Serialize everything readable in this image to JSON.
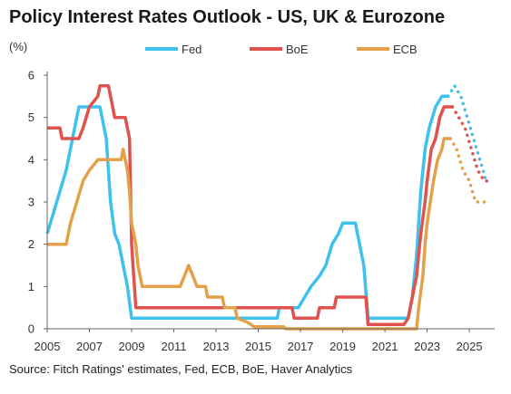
{
  "header": {
    "title": "Policy Interest Rates Outlook - US, UK & Eurozone",
    "unit": "(%)"
  },
  "footer": {
    "source": "Source: Fitch Ratings' estimates, Fed, ECB, BoE, Haver Analytics"
  },
  "colors": {
    "fed": "#3ec1ea",
    "boe": "#e0524d",
    "ecb": "#e3a24a",
    "axis": "#666666",
    "grid": "#ffffff"
  },
  "chart_data": {
    "type": "line",
    "title": "Policy Interest Rates Outlook - US, UK & Eurozone",
    "ylabel": "(%)",
    "xlabel": "",
    "xlim": [
      2005,
      2026.2
    ],
    "ylim": [
      0,
      6
    ],
    "x_ticks": [
      2005,
      2007,
      2009,
      2011,
      2013,
      2015,
      2017,
      2019,
      2021,
      2023,
      2025
    ],
    "y_ticks": [
      0,
      1,
      2,
      3,
      4,
      5,
      6
    ],
    "grid": false,
    "legend_position": "top",
    "series": [
      {
        "name": "Fed",
        "color": "#3ec1ea",
        "actual": [
          [
            2005.0,
            2.25
          ],
          [
            2005.3,
            2.75
          ],
          [
            2005.6,
            3.25
          ],
          [
            2005.9,
            3.75
          ],
          [
            2006.2,
            4.5
          ],
          [
            2006.5,
            5.25
          ],
          [
            2007.5,
            5.25
          ],
          [
            2007.8,
            4.5
          ],
          [
            2008.0,
            3.0
          ],
          [
            2008.2,
            2.25
          ],
          [
            2008.4,
            2.0
          ],
          [
            2008.8,
            1.0
          ],
          [
            2009.0,
            0.25
          ],
          [
            2015.9,
            0.25
          ],
          [
            2016.0,
            0.5
          ],
          [
            2016.9,
            0.5
          ],
          [
            2017.2,
            0.75
          ],
          [
            2017.5,
            1.0
          ],
          [
            2017.9,
            1.25
          ],
          [
            2018.2,
            1.5
          ],
          [
            2018.5,
            2.0
          ],
          [
            2018.8,
            2.25
          ],
          [
            2019.0,
            2.5
          ],
          [
            2019.6,
            2.5
          ],
          [
            2019.8,
            2.0
          ],
          [
            2020.0,
            1.5
          ],
          [
            2020.2,
            0.25
          ],
          [
            2022.1,
            0.25
          ],
          [
            2022.3,
            0.75
          ],
          [
            2022.5,
            1.75
          ],
          [
            2022.7,
            3.25
          ],
          [
            2022.9,
            4.25
          ],
          [
            2023.1,
            4.75
          ],
          [
            2023.4,
            5.25
          ],
          [
            2023.7,
            5.5
          ],
          [
            2024.0,
            5.5
          ]
        ],
        "forecast": [
          [
            2024.0,
            5.5
          ],
          [
            2024.3,
            5.75
          ],
          [
            2024.6,
            5.5
          ],
          [
            2024.9,
            5.0
          ],
          [
            2025.2,
            4.5
          ],
          [
            2025.5,
            4.0
          ],
          [
            2025.8,
            3.5
          ]
        ]
      },
      {
        "name": "BoE",
        "color": "#e0524d",
        "actual": [
          [
            2005.0,
            4.75
          ],
          [
            2005.6,
            4.75
          ],
          [
            2005.7,
            4.5
          ],
          [
            2006.5,
            4.5
          ],
          [
            2006.7,
            4.75
          ],
          [
            2007.0,
            5.25
          ],
          [
            2007.4,
            5.5
          ],
          [
            2007.5,
            5.75
          ],
          [
            2007.9,
            5.75
          ],
          [
            2008.0,
            5.5
          ],
          [
            2008.2,
            5.0
          ],
          [
            2008.7,
            5.0
          ],
          [
            2008.9,
            4.5
          ],
          [
            2009.0,
            2.0
          ],
          [
            2009.2,
            0.5
          ],
          [
            2016.6,
            0.5
          ],
          [
            2016.7,
            0.25
          ],
          [
            2017.8,
            0.25
          ],
          [
            2017.9,
            0.5
          ],
          [
            2018.6,
            0.5
          ],
          [
            2018.7,
            0.75
          ],
          [
            2020.1,
            0.75
          ],
          [
            2020.2,
            0.1
          ],
          [
            2021.9,
            0.1
          ],
          [
            2022.1,
            0.25
          ],
          [
            2022.3,
            0.75
          ],
          [
            2022.5,
            1.25
          ],
          [
            2022.7,
            2.25
          ],
          [
            2022.9,
            3.0
          ],
          [
            2023.0,
            3.5
          ],
          [
            2023.2,
            4.25
          ],
          [
            2023.4,
            4.5
          ],
          [
            2023.6,
            5.0
          ],
          [
            2023.8,
            5.25
          ],
          [
            2024.2,
            5.25
          ]
        ],
        "forecast": [
          [
            2024.2,
            5.25
          ],
          [
            2024.5,
            5.0
          ],
          [
            2024.8,
            4.75
          ],
          [
            2025.1,
            4.25
          ],
          [
            2025.4,
            3.75
          ],
          [
            2025.7,
            3.5
          ],
          [
            2025.9,
            3.5
          ]
        ]
      },
      {
        "name": "ECB",
        "color": "#e3a24a",
        "actual": [
          [
            2005.0,
            2.0
          ],
          [
            2005.9,
            2.0
          ],
          [
            2006.1,
            2.5
          ],
          [
            2006.4,
            3.0
          ],
          [
            2006.7,
            3.5
          ],
          [
            2007.0,
            3.75
          ],
          [
            2007.4,
            4.0
          ],
          [
            2008.5,
            4.0
          ],
          [
            2008.6,
            4.25
          ],
          [
            2008.8,
            3.75
          ],
          [
            2008.9,
            3.25
          ],
          [
            2009.0,
            2.5
          ],
          [
            2009.2,
            2.0
          ],
          [
            2009.3,
            1.5
          ],
          [
            2009.5,
            1.0
          ],
          [
            2011.3,
            1.0
          ],
          [
            2011.5,
            1.25
          ],
          [
            2011.7,
            1.5
          ],
          [
            2011.9,
            1.25
          ],
          [
            2012.1,
            1.0
          ],
          [
            2012.5,
            1.0
          ],
          [
            2012.6,
            0.75
          ],
          [
            2013.3,
            0.75
          ],
          [
            2013.4,
            0.5
          ],
          [
            2013.9,
            0.5
          ],
          [
            2014.0,
            0.25
          ],
          [
            2014.5,
            0.15
          ],
          [
            2014.8,
            0.05
          ],
          [
            2016.2,
            0.05
          ],
          [
            2016.3,
            0.0
          ],
          [
            2022.5,
            0.0
          ],
          [
            2022.6,
            0.5
          ],
          [
            2022.8,
            1.25
          ],
          [
            2022.9,
            2.0
          ],
          [
            2023.0,
            2.5
          ],
          [
            2023.3,
            3.5
          ],
          [
            2023.5,
            4.0
          ],
          [
            2023.7,
            4.25
          ],
          [
            2023.8,
            4.5
          ],
          [
            2024.1,
            4.5
          ]
        ],
        "forecast": [
          [
            2024.1,
            4.5
          ],
          [
            2024.4,
            4.25
          ],
          [
            2024.7,
            3.75
          ],
          [
            2025.0,
            3.5
          ],
          [
            2025.3,
            3.0
          ],
          [
            2025.6,
            3.0
          ],
          [
            2025.8,
            3.0
          ]
        ]
      }
    ]
  }
}
